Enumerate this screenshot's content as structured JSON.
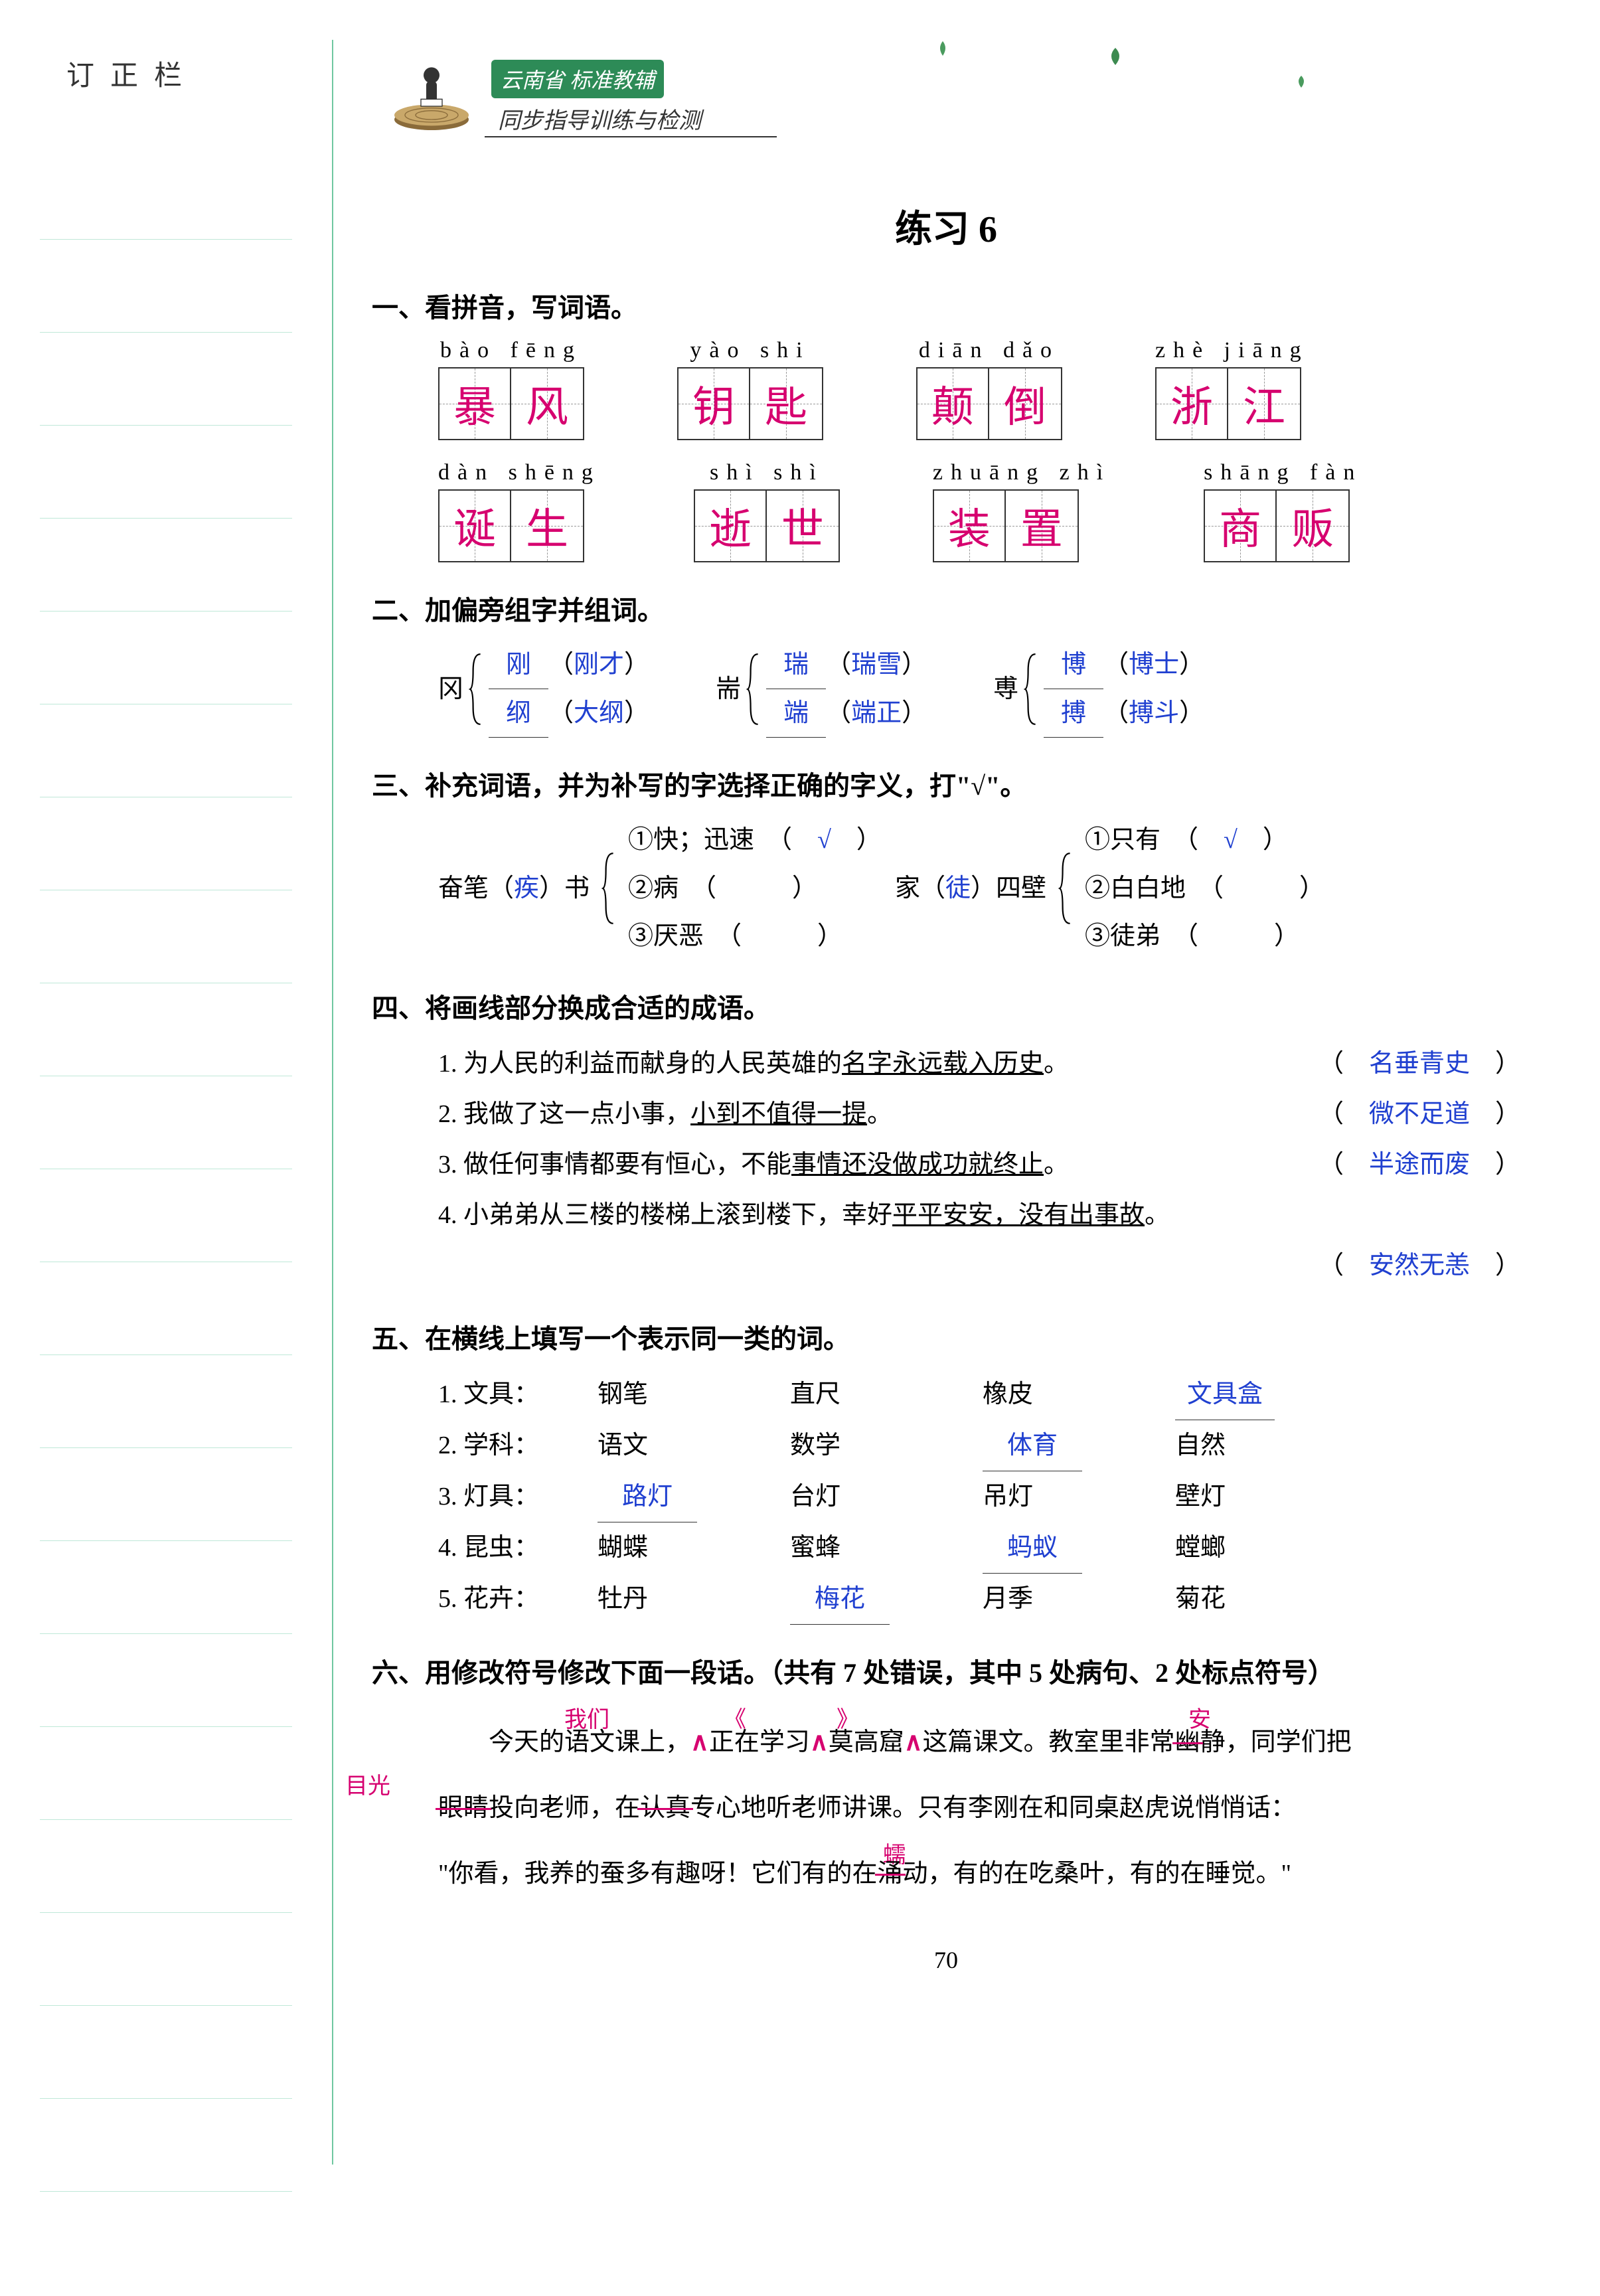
{
  "page_number": "70",
  "margin_title": "订正栏",
  "margin_line_count": 22,
  "banner": {
    "top": "云南省 标准教辅",
    "bottom": "同步指导训练与检测"
  },
  "colors": {
    "answer_blue": "#2040d0",
    "handwrite_pink": "#d6006f",
    "banner_green": "#2d8b57",
    "divider_green": "#6fc7a0",
    "margin_rule": "#bfe8d8"
  },
  "main_title": "练习 6",
  "section1": {
    "heading": "一、看拼音，写词语。",
    "rows": [
      [
        {
          "pinyin": "bào fēng",
          "chars": [
            "暴",
            "风"
          ]
        },
        {
          "pinyin": "yào shi",
          "chars": [
            "钥",
            "匙"
          ]
        },
        {
          "pinyin": "diān dǎo",
          "chars": [
            "颠",
            "倒"
          ]
        },
        {
          "pinyin": "zhè jiāng",
          "chars": [
            "浙",
            "江"
          ]
        }
      ],
      [
        {
          "pinyin": "dàn shēng",
          "chars": [
            "诞",
            "生"
          ]
        },
        {
          "pinyin": "shì shì",
          "chars": [
            "逝",
            "世"
          ]
        },
        {
          "pinyin": "zhuāng zhì",
          "chars": [
            "装",
            "置"
          ]
        },
        {
          "pinyin": "shāng fàn",
          "chars": [
            "商",
            "贩"
          ]
        }
      ]
    ]
  },
  "section2": {
    "heading": "二、加偏旁组字并组词。",
    "groups": [
      {
        "base": "冈",
        "lines": [
          [
            "刚",
            "刚才"
          ],
          [
            "纲",
            "大纲"
          ]
        ]
      },
      {
        "base": "耑",
        "lines": [
          [
            "瑞",
            "瑞雪"
          ],
          [
            "端",
            "端正"
          ]
        ]
      },
      {
        "base": "尃",
        "lines": [
          [
            "博",
            "博士"
          ],
          [
            "搏",
            "搏斗"
          ]
        ]
      }
    ]
  },
  "section3": {
    "heading": "三、补充词语，并为补写的字选择正确的字义，打\"√\"。",
    "left": {
      "prefix": "奋笔（",
      "fill": "疾",
      "suffix": "）书",
      "options": [
        {
          "label": "①快；迅速",
          "checked": true
        },
        {
          "label": "②病",
          "checked": false
        },
        {
          "label": "③厌恶",
          "checked": false
        }
      ]
    },
    "right": {
      "prefix": "家（",
      "fill": "徒",
      "suffix": "）四壁",
      "options": [
        {
          "label": "①只有",
          "checked": true
        },
        {
          "label": "②白白地",
          "checked": false
        },
        {
          "label": "③徒弟",
          "checked": false
        }
      ]
    }
  },
  "section4": {
    "heading": "四、将画线部分换成合适的成语。",
    "items": [
      {
        "num": "1.",
        "pre": "为人民的利益而献身的人民英雄的",
        "ul": "名字永远载入历史",
        "post": "。",
        "ans": "名垂青史"
      },
      {
        "num": "2.",
        "pre": "我做了这一点小事，",
        "ul": "小到不值得一提",
        "post": "。",
        "ans": "微不足道"
      },
      {
        "num": "3.",
        "pre": "做任何事情都要有恒心，不能",
        "ul": "事情还没做成功就终止",
        "post": "。",
        "ans": "半途而废"
      },
      {
        "num": "4.",
        "pre": "小弟弟从三楼的楼梯上滚到楼下，幸好",
        "ul": "平平安安，没有出事故",
        "post": "。",
        "ans": "安然无恙"
      }
    ]
  },
  "section5": {
    "heading": "五、在横线上填写一个表示同一类的词。",
    "rows": [
      {
        "num": "1.",
        "cat": "文具：",
        "cells": [
          "钢笔",
          "直尺",
          "橡皮",
          "文具盒"
        ],
        "blank": 3
      },
      {
        "num": "2.",
        "cat": "学科：",
        "cells": [
          "语文",
          "数学",
          "体育",
          "自然"
        ],
        "blank": 2
      },
      {
        "num": "3.",
        "cat": "灯具：",
        "cells": [
          "路灯",
          "台灯",
          "吊灯",
          "壁灯"
        ],
        "blank": 0
      },
      {
        "num": "4.",
        "cat": "昆虫：",
        "cells": [
          "蝴蝶",
          "蜜蜂",
          "蚂蚁",
          "螳螂"
        ],
        "blank": 2
      },
      {
        "num": "5.",
        "cat": "花卉：",
        "cells": [
          "牡丹",
          "梅花",
          "月季",
          "菊花"
        ],
        "blank": 1
      }
    ]
  },
  "section6": {
    "heading": "六、用修改符号修改下面一段话。（共有 7 处错误，其中 5 处病句、2 处标点符号）",
    "edits": {
      "women": "我们",
      "mukuang_l": "《",
      "mukuang_r": "》",
      "an": "安",
      "muguang": "目光",
      "ru": "蠕"
    },
    "text_line1_a": "今天的语文课上，",
    "text_line1_b": "正在学习",
    "text_line1_c": "莫高窟",
    "text_line1_d": "这篇课文。教室里非常",
    "text_line1_e_strike": "幽",
    "text_line1_f": "静，同学们把",
    "text_line2_a_strike": "眼睛",
    "text_line2_b": "投向老师，在",
    "text_line2_c_strike": "认真",
    "text_line2_d": "专心地听老师讲课。只有李刚在和同桌赵虎说悄悄话：",
    "text_line3": "\"你看，我养的蚕多有趣呀！它们有的在",
    "text_line3_strike": "涌",
    "text_line3_end": "动，有的在吃桑叶，有的在睡觉。\""
  }
}
